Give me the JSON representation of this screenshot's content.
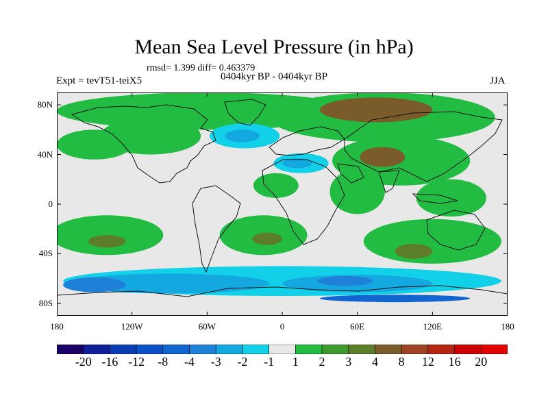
{
  "header": {
    "title": "Mean Sea Level Pressure (in hPa)",
    "stats": "rmsd= 1.399 diff= 0.463379",
    "experiment": "Expt = tevT51-teiX5",
    "period": "0404kyr BP - 0404kyr BP",
    "season": "JJA"
  },
  "axes": {
    "lat_labels": [
      "80N",
      "40N",
      "0",
      "40S",
      "80S"
    ],
    "lat_values": [
      80,
      40,
      0,
      -40,
      -80
    ],
    "lon_labels": [
      "180",
      "120W",
      "60W",
      "0",
      "60E",
      "120E",
      "180"
    ],
    "lon_values": [
      -180,
      -120,
      -60,
      0,
      60,
      120,
      180
    ],
    "lat_range": [
      -90,
      90
    ],
    "lon_range": [
      -180,
      180
    ]
  },
  "colorbar": {
    "labels": [
      "-20",
      "-16",
      "-12",
      "-8",
      "-4",
      "-3",
      "-2",
      "-1",
      "1",
      "2",
      "3",
      "4",
      "8",
      "12",
      "16",
      "20"
    ],
    "colors": [
      "#1a0066",
      "#0f1f99",
      "#0a3cb4",
      "#0b4fc8",
      "#1264d0",
      "#1f80d8",
      "#14a8e0",
      "#12d0e8",
      "#e8e8e8",
      "#23bc43",
      "#3f9a2d",
      "#5c7e2a",
      "#7a5b2a",
      "#9b4322",
      "#b52612",
      "#cc0000",
      "#e00000"
    ]
  },
  "field": {
    "background": "#e8e8e8",
    "regions": [
      {
        "name": "arctic-positive-band",
        "level": "1",
        "lon": -60,
        "lat": 75,
        "rlon": 120,
        "rlat": 15
      },
      {
        "name": "siberia-positive",
        "level": "1",
        "lon": 80,
        "lat": 70,
        "rlon": 90,
        "rlat": 20
      },
      {
        "name": "siberia-strong",
        "level": "3",
        "lon": 75,
        "lat": 76,
        "rlon": 45,
        "rlat": 10
      },
      {
        "name": "north-pacific-positive",
        "level": "1",
        "lon": -150,
        "lat": 48,
        "rlon": 30,
        "rlat": 12
      },
      {
        "name": "north-america-positive",
        "level": "1",
        "lon": -105,
        "lat": 55,
        "rlon": 40,
        "rlat": 15
      },
      {
        "name": "north-atlantic-negative",
        "level": "-1",
        "lon": -30,
        "lat": 55,
        "rlon": 28,
        "rlat": 10
      },
      {
        "name": "north-atlantic-negative-core",
        "level": "-2",
        "lon": -32,
        "lat": 55,
        "rlon": 14,
        "rlat": 5
      },
      {
        "name": "mediterranean-negative",
        "level": "-1",
        "lon": 15,
        "lat": 33,
        "rlon": 22,
        "rlat": 8
      },
      {
        "name": "mediterranean-negative-core",
        "level": "-2",
        "lon": 12,
        "lat": 33,
        "rlon": 12,
        "rlat": 4
      },
      {
        "name": "asia-positive",
        "level": "1",
        "lon": 95,
        "lat": 35,
        "rlon": 55,
        "rlat": 20
      },
      {
        "name": "asia-strong",
        "level": "3",
        "lon": 80,
        "lat": 38,
        "rlon": 18,
        "rlat": 8
      },
      {
        "name": "west-africa-positive",
        "level": "1",
        "lon": -5,
        "lat": 15,
        "rlon": 18,
        "rlat": 10
      },
      {
        "name": "indian-ocean-positive",
        "level": "1",
        "lon": 60,
        "lat": 10,
        "rlon": 22,
        "rlat": 18
      },
      {
        "name": "maritime-positive",
        "level": "1",
        "lon": 135,
        "lat": 5,
        "rlon": 28,
        "rlat": 15
      },
      {
        "name": "south-pacific-positive",
        "level": "1",
        "lon": -140,
        "lat": -25,
        "rlon": 45,
        "rlat": 16
      },
      {
        "name": "south-pacific-strong",
        "level": "2",
        "lon": -140,
        "lat": -30,
        "rlon": 15,
        "rlat": 5
      },
      {
        "name": "south-atlantic-positive",
        "level": "1",
        "lon": -15,
        "lat": -25,
        "rlon": 35,
        "rlat": 16
      },
      {
        "name": "south-atlantic-strong",
        "level": "2",
        "lon": -12,
        "lat": -28,
        "rlon": 12,
        "rlat": 5
      },
      {
        "name": "south-indian-positive",
        "level": "1",
        "lon": 120,
        "lat": -30,
        "rlon": 55,
        "rlat": 18
      },
      {
        "name": "south-indian-strong",
        "level": "2",
        "lon": 105,
        "lat": -38,
        "rlon": 15,
        "rlat": 6
      },
      {
        "name": "southern-ocean-negative",
        "level": "-1",
        "lon": 0,
        "lat": -62,
        "rlon": 175,
        "rlat": 12
      },
      {
        "name": "southern-ocean-negative-2",
        "level": "-2",
        "lon": -90,
        "lat": -64,
        "rlon": 80,
        "rlat": 8
      },
      {
        "name": "pacific-sector-negative",
        "level": "-3",
        "lon": -150,
        "lat": -65,
        "rlon": 25,
        "rlat": 6
      },
      {
        "name": "indian-sector-negative",
        "level": "-2",
        "lon": 60,
        "lat": -64,
        "rlon": 60,
        "rlat": 7
      },
      {
        "name": "indian-sector-strong",
        "level": "-3",
        "lon": 50,
        "lat": -62,
        "rlon": 22,
        "rlat": 4
      },
      {
        "name": "antarctic-coastal-negative",
        "level": "-4",
        "lon": 90,
        "lat": -76,
        "rlon": 60,
        "rlat": 3
      }
    ]
  }
}
